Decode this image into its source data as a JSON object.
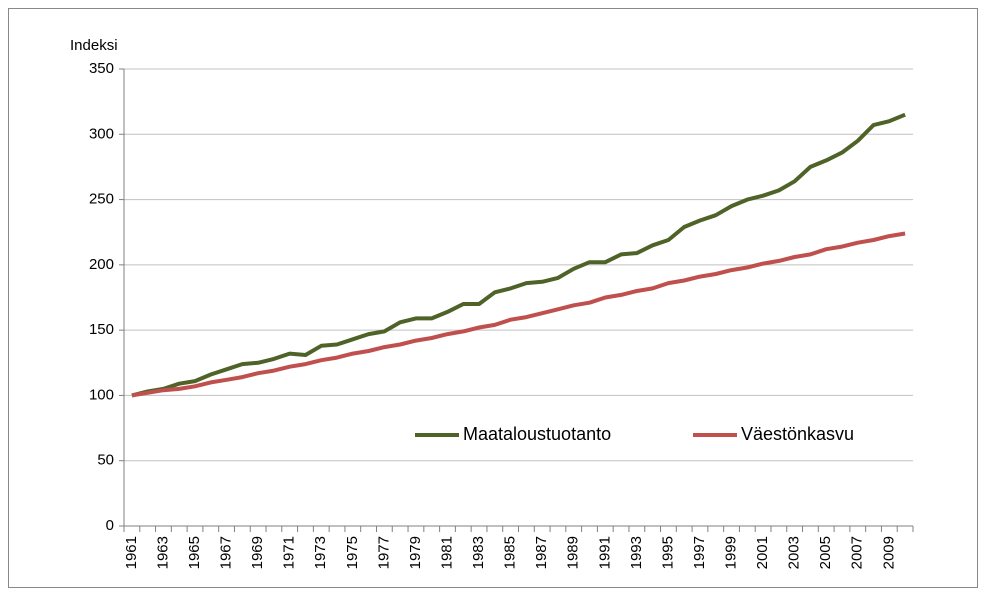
{
  "chart_data": {
    "type": "line",
    "y_label": "Indeksi",
    "categories": [
      "1961",
      null,
      "1963",
      null,
      "1965",
      null,
      "1967",
      null,
      "1969",
      null,
      "1971",
      null,
      "1973",
      null,
      "1975",
      null,
      "1977",
      null,
      "1979",
      null,
      "1981",
      null,
      "1983",
      null,
      "1985",
      null,
      "1987",
      null,
      "1989",
      null,
      "1991",
      null,
      "1993",
      null,
      "1995",
      null,
      "1997",
      null,
      "1999",
      null,
      "2001",
      null,
      "2003",
      null,
      "2005",
      null,
      "2007",
      null,
      "2009",
      null
    ],
    "series": [
      {
        "name": "Maataloustuotanto",
        "color": "#4f6228",
        "values": [
          100,
          103,
          105,
          109,
          111,
          116,
          120,
          124,
          125,
          128,
          132,
          131,
          138,
          139,
          143,
          147,
          149,
          156,
          159,
          159,
          164,
          170,
          170,
          179,
          182,
          186,
          187,
          190,
          197,
          202,
          202,
          208,
          209,
          215,
          219,
          229,
          234,
          238,
          245,
          250,
          253,
          257,
          264,
          275,
          280,
          286,
          295,
          307,
          310,
          315
        ]
      },
      {
        "name": "Väestönkasvu",
        "color": "#c0504d",
        "values": [
          100,
          102,
          104,
          105,
          107,
          110,
          112,
          114,
          117,
          119,
          122,
          124,
          127,
          129,
          132,
          134,
          137,
          139,
          142,
          144,
          147,
          149,
          152,
          154,
          158,
          160,
          163,
          166,
          169,
          171,
          175,
          177,
          180,
          182,
          186,
          188,
          191,
          193,
          196,
          198,
          201,
          203,
          206,
          208,
          212,
          214,
          217,
          219,
          222,
          224
        ]
      }
    ],
    "ylim": [
      0,
      350
    ],
    "yticks": [
      0,
      50,
      100,
      150,
      200,
      250,
      300,
      350
    ],
    "grid": true
  }
}
